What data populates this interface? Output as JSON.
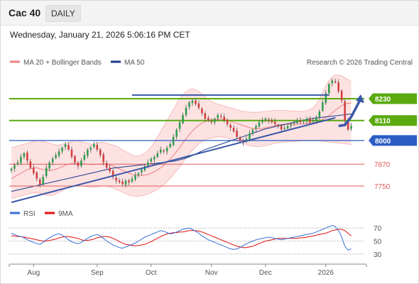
{
  "header": {
    "title": "Cac 40",
    "timeframe": "DAILY"
  },
  "date_line": "Wednesday, January 21, 2026 5:06:16 PM CET",
  "credit": "Research © 2026 Trading Central",
  "colors": {
    "up": "#2a9d4a",
    "down": "#d23a3a",
    "green_level": "#5aaa10",
    "blue_level": "#2a5cc4",
    "red_level": "#e05a5a",
    "trend": "#3a58a8",
    "band_fill": "#fde2e2",
    "ma20": "#f08080",
    "ma50": "#1a3a8a",
    "rsi": "#3a6fd8",
    "rsi_ma": "#e01010"
  },
  "chart_data": [
    {
      "type": "candlestick",
      "name": "price",
      "legend": [
        {
          "label": "MA 20 + Bollinger Bands",
          "color": "#f08080"
        },
        {
          "label": "MA 50",
          "color": "#1a3a8a"
        }
      ],
      "x_ticks": [
        "Aug",
        "Sep",
        "Oct",
        "Nov",
        "Dec",
        "2026"
      ],
      "ylim": [
        7660,
        8390
      ],
      "levels": [
        {
          "label": "8230",
          "value": 8230,
          "kind": "resistance",
          "color": "#5aaa10"
        },
        {
          "label": "8110",
          "value": 8110,
          "kind": "resistance",
          "color": "#5aaa10"
        },
        {
          "label": "8000",
          "value": 8000,
          "kind": "pivot",
          "color": "#2a5cc4"
        },
        {
          "label": "7870",
          "value": 7870,
          "kind": "support",
          "color": "#e05a5a"
        },
        {
          "label": "7750",
          "value": 7750,
          "kind": "support",
          "color": "#e05a5a"
        }
      ],
      "closes": [
        7845,
        7865,
        7880,
        7910,
        7930,
        7890,
        7850,
        7820,
        7790,
        7760,
        7800,
        7850,
        7880,
        7900,
        7920,
        7940,
        7960,
        7980,
        7950,
        7910,
        7880,
        7860,
        7890,
        7920,
        7950,
        7960,
        7980,
        7950,
        7920,
        7880,
        7850,
        7830,
        7800,
        7780,
        7770,
        7760,
        7780,
        7770,
        7790,
        7810,
        7820,
        7840,
        7860,
        7880,
        7900,
        7910,
        7930,
        7950,
        7940,
        7960,
        7980,
        8020,
        8060,
        8100,
        8140,
        8180,
        8210,
        8220,
        8200,
        8180,
        8150,
        8120,
        8110,
        8100,
        8120,
        8140,
        8130,
        8110,
        8090,
        8070,
        8050,
        8020,
        8000,
        7990,
        8010,
        8040,
        8060,
        8080,
        8100,
        8110,
        8120,
        8110,
        8100,
        8090,
        8080,
        8060,
        8070,
        8080,
        8090,
        8100,
        8110,
        8100,
        8110,
        8120,
        8100,
        8110,
        8130,
        8160,
        8210,
        8260,
        8310,
        8330,
        8320,
        8270,
        8220,
        8110,
        8060,
        8080
      ],
      "ma20": [
        7790,
        7800,
        7810,
        7820,
        7830,
        7840,
        7845,
        7850,
        7850,
        7845,
        7840,
        7838,
        7836,
        7838,
        7842,
        7848,
        7856,
        7864,
        7870,
        7874,
        7876,
        7876,
        7874,
        7872,
        7870,
        7868,
        7868,
        7870,
        7872,
        7872,
        7870,
        7866,
        7860,
        7852,
        7844,
        7836,
        7828,
        7820,
        7814,
        7810,
        7808,
        7808,
        7810,
        7814,
        7820,
        7828,
        7838,
        7850,
        7864,
        7880,
        7898,
        7918,
        7940,
        7962,
        7986,
        8010,
        8032,
        8052,
        8070,
        8084,
        8096,
        8104,
        8110,
        8114,
        8116,
        8118,
        8118,
        8116,
        8112,
        8106,
        8100,
        8094,
        8088,
        8082,
        8076,
        8070,
        8066,
        8064,
        8064,
        8066,
        8070,
        8074,
        8078,
        8082,
        8086,
        8088,
        8090,
        8090,
        8090,
        8090,
        8090,
        8090,
        8092,
        8094,
        8096,
        8098,
        8102,
        8108,
        8116,
        8126,
        8138,
        8152,
        8166,
        8180,
        8192,
        8200,
        8204,
        8206
      ],
      "upper_band": [
        7960,
        7965,
        7970,
        7975,
        7980,
        7985,
        7990,
        7995,
        8000,
        8000,
        7995,
        7990,
        7985,
        7980,
        7975,
        7975,
        7980,
        7985,
        7990,
        7995,
        8000,
        8000,
        7995,
        7990,
        7985,
        7980,
        7980,
        7985,
        7990,
        7990,
        7985,
        7980,
        7975,
        7970,
        7960,
        7950,
        7940,
        7930,
        7920,
        7915,
        7915,
        7920,
        7930,
        7945,
        7965,
        7990,
        8020,
        8050,
        8080,
        8110,
        8140,
        8170,
        8200,
        8230,
        8250,
        8270,
        8280,
        8285,
        8280,
        8270,
        8255,
        8240,
        8225,
        8215,
        8205,
        8200,
        8195,
        8190,
        8185,
        8180,
        8175,
        8170,
        8165,
        8160,
        8158,
        8156,
        8155,
        8155,
        8156,
        8158,
        8160,
        8162,
        8164,
        8165,
        8166,
        8166,
        8165,
        8164,
        8163,
        8162,
        8161,
        8160,
        8162,
        8165,
        8170,
        8180,
        8200,
        8230,
        8265,
        8300,
        8330,
        8350,
        8360,
        8360,
        8355,
        8345,
        8335,
        8325
      ],
      "lower_band": [
        7680,
        7685,
        7690,
        7695,
        7700,
        7705,
        7710,
        7712,
        7712,
        7710,
        7705,
        7700,
        7698,
        7700,
        7706,
        7714,
        7724,
        7734,
        7742,
        7748,
        7752,
        7752,
        7750,
        7748,
        7746,
        7744,
        7744,
        7746,
        7748,
        7750,
        7748,
        7744,
        7740,
        7732,
        7724,
        7716,
        7708,
        7700,
        7696,
        7694,
        7694,
        7696,
        7700,
        7706,
        7714,
        7722,
        7732,
        7744,
        7758,
        7774,
        7792,
        7812,
        7834,
        7856,
        7880,
        7904,
        7926,
        7946,
        7964,
        7980,
        7994,
        8004,
        8010,
        8014,
        8018,
        8020,
        8020,
        8018,
        8014,
        8008,
        8002,
        7996,
        7990,
        7984,
        7978,
        7972,
        7968,
        7966,
        7966,
        7968,
        7972,
        7976,
        7980,
        7984,
        7988,
        7990,
        7992,
        7993,
        7994,
        7995,
        7996,
        7997,
        7998,
        7998,
        7998,
        7998,
        7998,
        7998,
        7996,
        7994,
        7992,
        7990,
        7988,
        7986,
        7984,
        7982,
        7980,
        7978
      ],
      "ma50": [
        7720,
        7724,
        7728,
        7732,
        7736,
        7740,
        7744,
        7748,
        7752,
        7756,
        7760,
        7764,
        7768,
        7772,
        7776,
        7780,
        7784,
        7788,
        7792,
        7796,
        7800,
        7804,
        7808,
        7812,
        7816,
        7820,
        7824,
        7828,
        7832,
        7836,
        7840,
        7844,
        7848,
        7850,
        7852,
        7854,
        7856,
        7858,
        7860,
        7862,
        7864,
        7866,
        7868,
        7870,
        7872,
        7874,
        7876,
        7878,
        7880,
        7882,
        7884,
        7886,
        7890,
        7894,
        7898,
        7904,
        7910,
        7918,
        7926,
        7934,
        7942,
        7950,
        7956,
        7962,
        7968,
        7974,
        7980,
        7986,
        7992,
        7998,
        8004,
        8010,
        8016,
        8022,
        8028,
        8034,
        8040,
        8046,
        8052,
        8058,
        8064,
        8068,
        8072,
        8076,
        8080,
        8084,
        8088,
        8092,
        8096,
        8100,
        8104,
        8108,
        8112,
        8116,
        8120,
        8122,
        8124,
        8126,
        8128,
        8130,
        8132,
        8134,
        8136,
        8138,
        8140,
        8142,
        8144,
        8146
      ],
      "trend_line": {
        "from": [
          0,
          7660
        ],
        "to": [
          102,
          8125
        ]
      },
      "projection": [
        [
          103,
          8080
        ],
        [
          105,
          8085
        ],
        [
          107,
          8130
        ],
        [
          110,
          8230
        ]
      ]
    },
    {
      "type": "line",
      "name": "rsi",
      "legend": [
        {
          "label": "RSI",
          "color": "#3a6fd8"
        },
        {
          "label": "9MA",
          "color": "#e01010"
        }
      ],
      "yticks": [
        "70",
        "50",
        "30"
      ],
      "ylim": [
        20,
        80
      ],
      "rsi": [
        62,
        60,
        58,
        57,
        55,
        52,
        50,
        48,
        46,
        45,
        48,
        52,
        55,
        58,
        60,
        61,
        59,
        56,
        52,
        49,
        47,
        46,
        48,
        51,
        54,
        57,
        59,
        60,
        58,
        54,
        50,
        47,
        44,
        42,
        40,
        39,
        41,
        43,
        45,
        47,
        50,
        53,
        56,
        58,
        60,
        62,
        64,
        66,
        65,
        63,
        61,
        62,
        64,
        66,
        68,
        69,
        70,
        68,
        65,
        62,
        58,
        55,
        52,
        50,
        48,
        46,
        44,
        42,
        40,
        38,
        37,
        38,
        40,
        43,
        46,
        48,
        50,
        52,
        53,
        54,
        55,
        56,
        55,
        54,
        53,
        52,
        53,
        54,
        55,
        56,
        57,
        58,
        59,
        60,
        61,
        62,
        64,
        66,
        68,
        70,
        72,
        74,
        72,
        66,
        56,
        42,
        36,
        38
      ],
      "rsi_ma": [
        58,
        58,
        57,
        57,
        56,
        55,
        54,
        53,
        52,
        51,
        50,
        50,
        51,
        52,
        53,
        55,
        56,
        57,
        57,
        56,
        55,
        54,
        52,
        51,
        51,
        52,
        53,
        55,
        56,
        57,
        57,
        56,
        54,
        52,
        49,
        47,
        45,
        44,
        43,
        43,
        43,
        44,
        45,
        47,
        49,
        52,
        54,
        57,
        59,
        61,
        62,
        63,
        63,
        64,
        64,
        65,
        66,
        66,
        66,
        65,
        64,
        62,
        60,
        58,
        56,
        54,
        52,
        50,
        48,
        46,
        44,
        42,
        41,
        40,
        40,
        41,
        42,
        44,
        46,
        48,
        50,
        51,
        52,
        53,
        54,
        54,
        54,
        54,
        54,
        54,
        54,
        55,
        55,
        56,
        57,
        58,
        59,
        60,
        61,
        62,
        64,
        66,
        67,
        68,
        68,
        66,
        62,
        58
      ]
    }
  ]
}
